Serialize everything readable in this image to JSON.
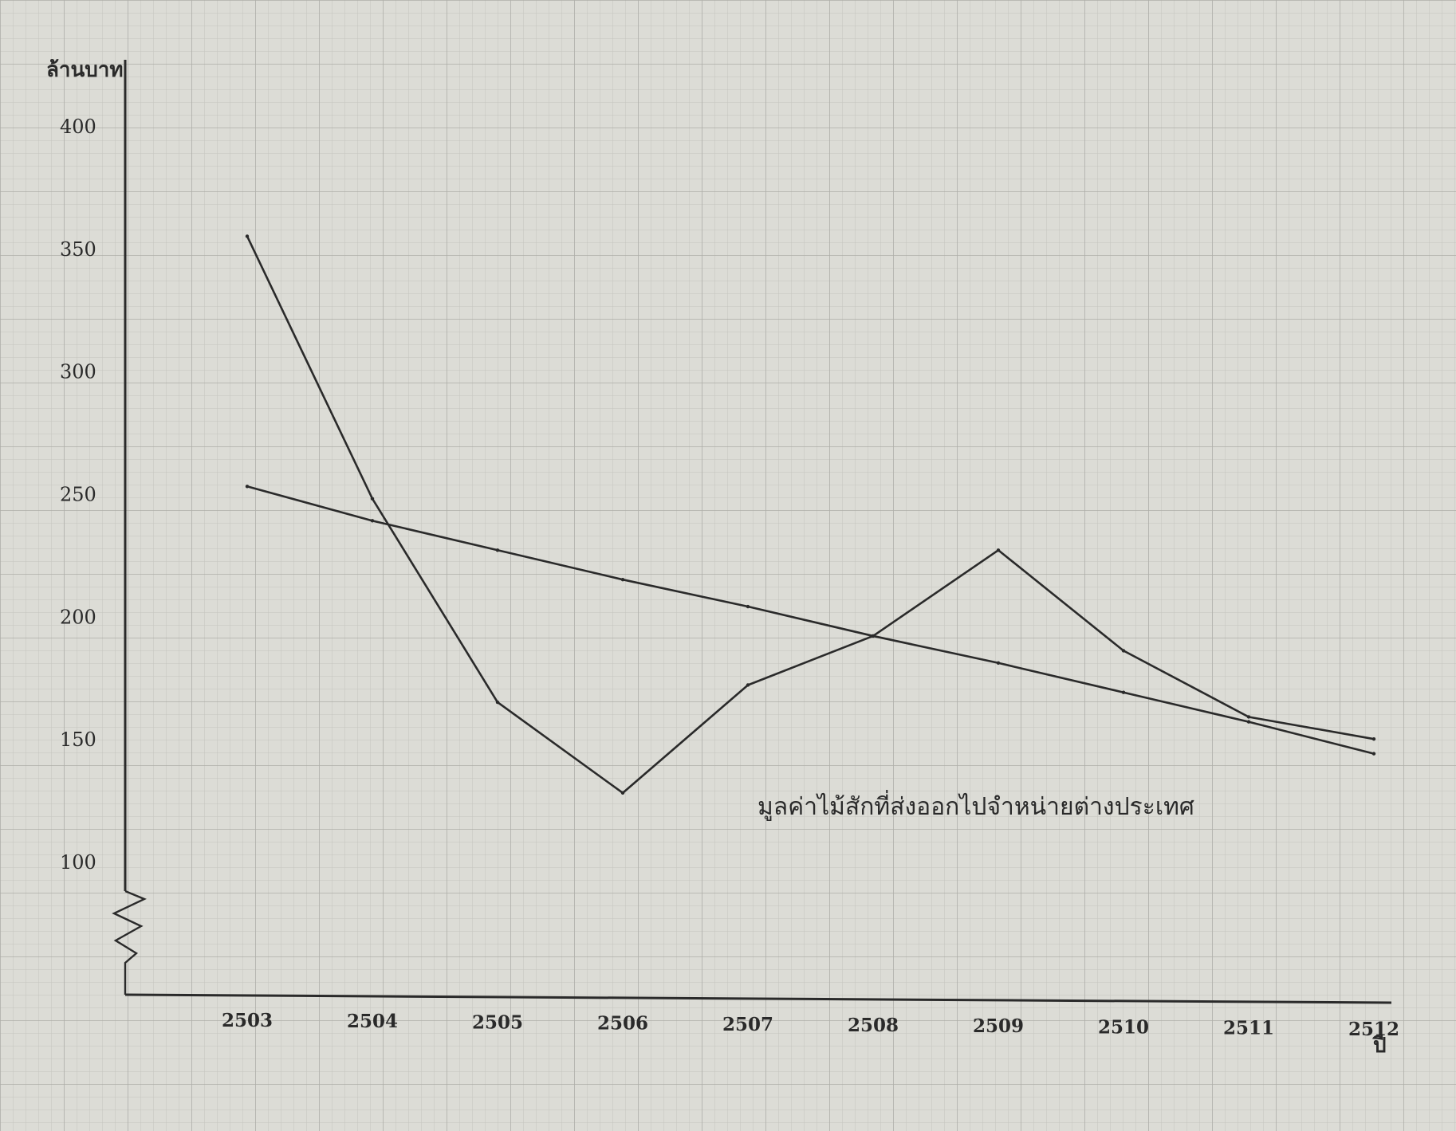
{
  "chart_data": {
    "type": "line",
    "title": "",
    "ylabel": "ล้านบาท",
    "xlabel": "ปี",
    "ylim": [
      75,
      400
    ],
    "y_ticks": [
      100,
      150,
      200,
      250,
      300,
      350,
      400
    ],
    "y_axis_break": true,
    "grid": true,
    "categories": [
      "2503",
      "2504",
      "2505",
      "2506",
      "2507",
      "2508",
      "2509",
      "2510",
      "2511",
      "2512"
    ],
    "series": [
      {
        "values": [
          355,
          248,
          165,
          128,
          172,
          192,
          227,
          186,
          159,
          150
        ]
      },
      {
        "values": [
          253,
          239,
          227,
          215,
          204,
          192,
          181,
          169,
          157,
          144
        ]
      }
    ],
    "annotations": [
      {
        "text": "มูลค่าไม้สักที่ส่งออกไปจำหน่ายต่างประเทศ"
      }
    ],
    "colors": {
      "paper": "#dcdcd6",
      "grid": "#b9b9b3",
      "ink": "#2a2a2a"
    }
  }
}
